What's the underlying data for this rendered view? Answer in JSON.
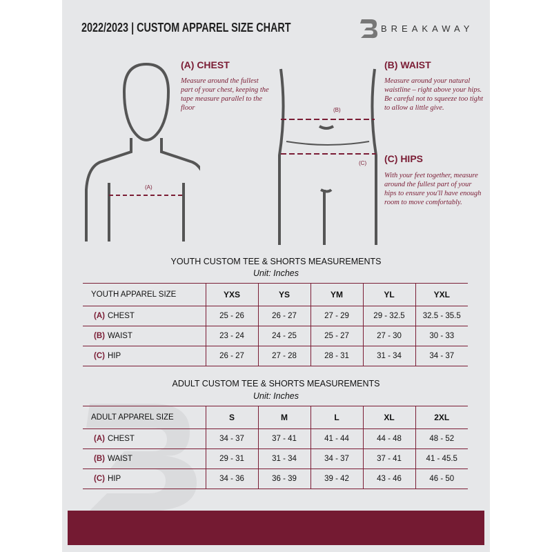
{
  "header": {
    "title": "2022/2023  |  CUSTOM APPAREL SIZE CHART",
    "brand": "BREAKAWAY"
  },
  "measures": {
    "chest": {
      "title": "(A) CHEST",
      "text": "Measure around the fullest part of your chest, keeping the tape measure parallel to the floor",
      "marker": "(A)"
    },
    "waist": {
      "title": "(B) WAIST",
      "text": "Measure around your natural waistline – right above your hips. Be careful not to squeeze too tight to allow a little give.",
      "marker": "(B)"
    },
    "hips": {
      "title": "(C) HIPS",
      "text": "With your feet together, measure around the fullest part of your hips to ensure you'll have enough room to move comfortably.",
      "marker": "(C)"
    }
  },
  "youth": {
    "title": "YOUTH CUSTOM TEE & SHORTS MEASUREMENTS",
    "unit": "Unit: Inches",
    "size_label": "YOUTH APPAREL SIZE",
    "sizes": [
      "YXS",
      "YS",
      "YM",
      "YL",
      "YXL"
    ],
    "rows": [
      {
        "letter": "(A)",
        "label": "CHEST",
        "values": [
          "25 - 26",
          "26 - 27",
          "27 - 29",
          "29 - 32.5",
          "32.5 - 35.5"
        ]
      },
      {
        "letter": "(B)",
        "label": "WAIST",
        "values": [
          "23 - 24",
          "24 - 25",
          "25 - 27",
          "27 - 30",
          "30 - 33"
        ]
      },
      {
        "letter": "(C)",
        "label": "HIP",
        "values": [
          "26 - 27",
          "27 - 28",
          "28 - 31",
          "31 - 34",
          "34 - 37"
        ]
      }
    ]
  },
  "adult": {
    "title": "ADULT CUSTOM TEE & SHORTS MEASUREMENTS",
    "unit": "Unit: Inches",
    "size_label": "ADULT APPAREL SIZE",
    "sizes": [
      "S",
      "M",
      "L",
      "XL",
      "2XL"
    ],
    "rows": [
      {
        "letter": "(A)",
        "label": "CHEST",
        "values": [
          "34 - 37",
          "37 - 41",
          "41 - 44",
          "44 - 48",
          "48 - 52"
        ]
      },
      {
        "letter": "(B)",
        "label": "WAIST",
        "values": [
          "29 - 31",
          "31 - 34",
          "34 - 37",
          "37 - 41",
          "41 - 45.5"
        ]
      },
      {
        "letter": "(C)",
        "label": "HIP",
        "values": [
          "34 - 36",
          "36 - 39",
          "39 - 42",
          "43 - 46",
          "46 - 50"
        ]
      }
    ]
  },
  "colors": {
    "accent": "#7a1c34",
    "background": "#e6e7e9",
    "footer": "#741a32"
  }
}
